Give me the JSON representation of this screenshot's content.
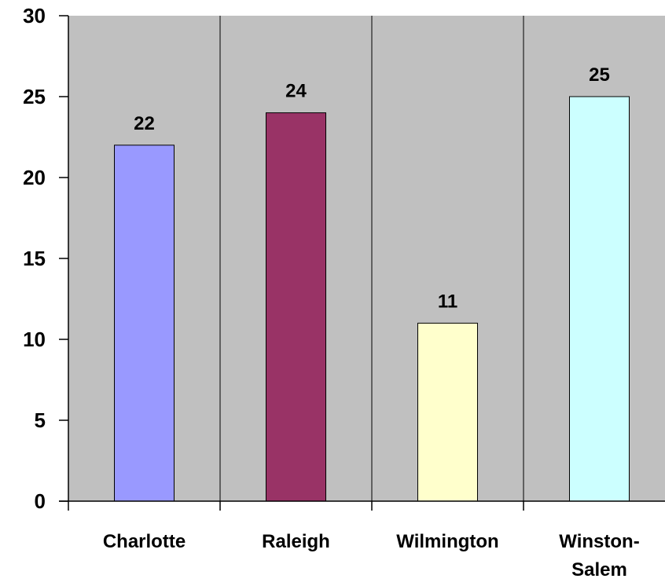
{
  "chart_data": {
    "type": "bar",
    "categories": [
      "Charlotte",
      "Raleigh",
      "Wilmington",
      "Winston-Salem"
    ],
    "category_lines": [
      [
        "Charlotte"
      ],
      [
        "Raleigh"
      ],
      [
        "Wilmington"
      ],
      [
        "Winston-",
        "Salem"
      ]
    ],
    "values": [
      22,
      24,
      11,
      25
    ],
    "value_labels": [
      "22",
      "24",
      "11",
      "25"
    ],
    "bar_colors": [
      "#9999ff",
      "#993366",
      "#ffffcc",
      "#ccffff"
    ],
    "ylim": [
      0,
      30
    ],
    "yticks": [
      0,
      5,
      10,
      15,
      20,
      25,
      30
    ],
    "ytick_labels": [
      "0",
      "5",
      "10",
      "15",
      "20",
      "25",
      "30"
    ],
    "plot_background": "#c0c0c0",
    "grid": false,
    "category_dividers": true,
    "legend": "none"
  }
}
